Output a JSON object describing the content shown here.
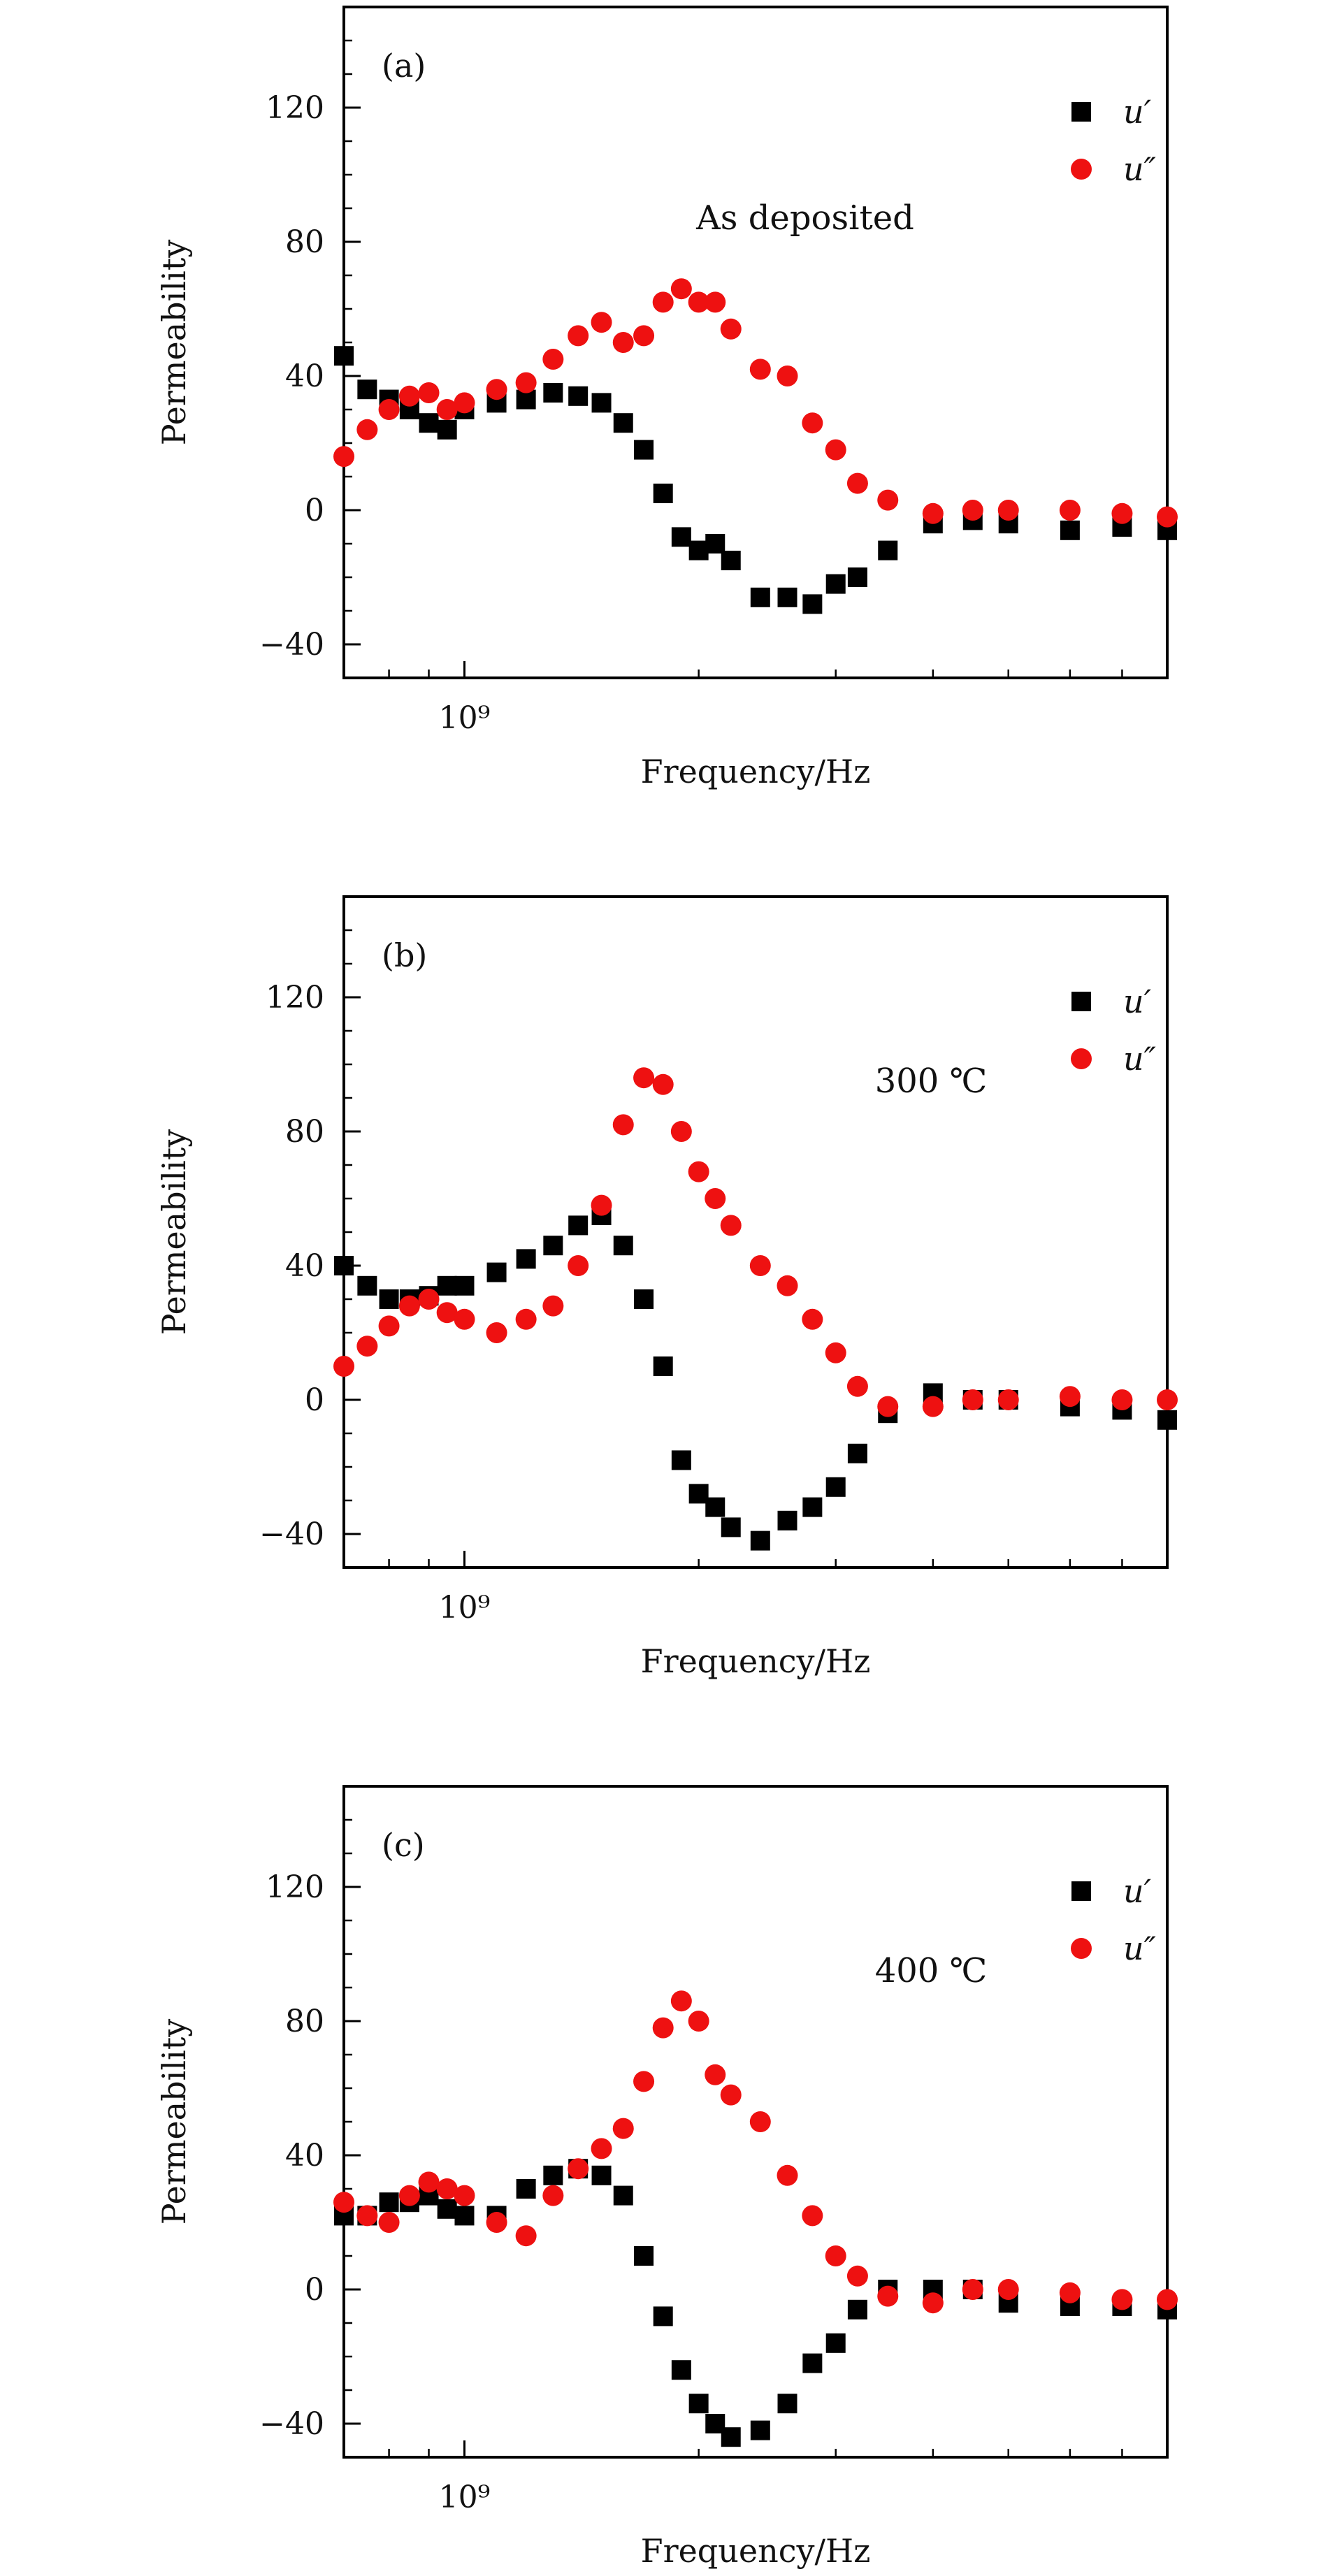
{
  "figure": {
    "panels": [
      {
        "label": "(a)",
        "annotation": "As deposited"
      },
      {
        "label": "(b)",
        "annotation": "300 ℃"
      },
      {
        "label": "(c)",
        "annotation": "400 ℃"
      }
    ]
  },
  "colors": {
    "u_prime": "#000000",
    "u_double_prime": "#ee1111"
  },
  "chart_data": [
    {
      "type": "scatter",
      "title": "",
      "xlabel": "Frequency/Hz",
      "ylabel": "Permeability",
      "x_scale": "log",
      "xlim": [
        700000000.0,
        8000000000.0
      ],
      "ylim": [
        -50,
        150
      ],
      "y_ticks": [
        -40,
        0,
        40,
        80,
        120
      ],
      "x_tick_labels": [
        "10⁹"
      ],
      "grid": false,
      "legend_position": "top-right",
      "series": [
        {
          "name": "u′",
          "marker": "square",
          "x": [
            700000000.0,
            750000000.0,
            800000000.0,
            850000000.0,
            900000000.0,
            950000000.0,
            1000000000.0,
            1100000000.0,
            1200000000.0,
            1300000000.0,
            1400000000.0,
            1500000000.0,
            1600000000.0,
            1700000000.0,
            1800000000.0,
            1900000000.0,
            2000000000.0,
            2100000000.0,
            2200000000.0,
            2400000000.0,
            2600000000.0,
            2800000000.0,
            3000000000.0,
            3200000000.0,
            3500000000.0,
            4000000000.0,
            4500000000.0,
            5000000000.0,
            6000000000.0,
            7000000000.0,
            8000000000.0
          ],
          "y": [
            46,
            36,
            33,
            30,
            26,
            24,
            30,
            32,
            33,
            35,
            34,
            32,
            26,
            18,
            5,
            -8,
            -12,
            -10,
            -15,
            -26,
            -26,
            -28,
            -22,
            -20,
            -12,
            -4,
            -3,
            -4,
            -6,
            -5,
            -6
          ]
        },
        {
          "name": "u″",
          "marker": "circle",
          "x": [
            700000000.0,
            750000000.0,
            800000000.0,
            850000000.0,
            900000000.0,
            950000000.0,
            1000000000.0,
            1100000000.0,
            1200000000.0,
            1300000000.0,
            1400000000.0,
            1500000000.0,
            1600000000.0,
            1700000000.0,
            1800000000.0,
            1900000000.0,
            2000000000.0,
            2100000000.0,
            2200000000.0,
            2400000000.0,
            2600000000.0,
            2800000000.0,
            3000000000.0,
            3200000000.0,
            3500000000.0,
            4000000000.0,
            4500000000.0,
            5000000000.0,
            6000000000.0,
            7000000000.0,
            8000000000.0
          ],
          "y": [
            16,
            24,
            30,
            34,
            35,
            30,
            32,
            36,
            38,
            45,
            52,
            56,
            50,
            52,
            62,
            66,
            62,
            62,
            54,
            42,
            40,
            26,
            18,
            8,
            3,
            -1,
            0,
            0,
            0,
            -1,
            -2
          ]
        }
      ]
    },
    {
      "type": "scatter",
      "title": "",
      "xlabel": "Frequency/Hz",
      "ylabel": "Permeability",
      "x_scale": "log",
      "xlim": [
        700000000.0,
        8000000000.0
      ],
      "ylim": [
        -50,
        150
      ],
      "y_ticks": [
        -40,
        0,
        40,
        80,
        120
      ],
      "x_tick_labels": [
        "10⁹"
      ],
      "grid": false,
      "legend_position": "top-right",
      "series": [
        {
          "name": "u′",
          "marker": "square",
          "x": [
            700000000.0,
            750000000.0,
            800000000.0,
            850000000.0,
            900000000.0,
            950000000.0,
            1000000000.0,
            1100000000.0,
            1200000000.0,
            1300000000.0,
            1400000000.0,
            1500000000.0,
            1600000000.0,
            1700000000.0,
            1800000000.0,
            1900000000.0,
            2000000000.0,
            2100000000.0,
            2200000000.0,
            2400000000.0,
            2600000000.0,
            2800000000.0,
            3000000000.0,
            3200000000.0,
            3500000000.0,
            4000000000.0,
            4500000000.0,
            5000000000.0,
            6000000000.0,
            7000000000.0,
            8000000000.0
          ],
          "y": [
            40,
            34,
            30,
            30,
            31,
            34,
            34,
            38,
            42,
            46,
            52,
            55,
            46,
            30,
            10,
            -18,
            -28,
            -32,
            -38,
            -42,
            -36,
            -32,
            -26,
            -16,
            -4,
            2,
            0,
            0,
            -2,
            -3,
            -6
          ]
        },
        {
          "name": "u″",
          "marker": "circle",
          "x": [
            700000000.0,
            750000000.0,
            800000000.0,
            850000000.0,
            900000000.0,
            950000000.0,
            1000000000.0,
            1100000000.0,
            1200000000.0,
            1300000000.0,
            1400000000.0,
            1500000000.0,
            1600000000.0,
            1700000000.0,
            1800000000.0,
            1900000000.0,
            2000000000.0,
            2100000000.0,
            2200000000.0,
            2400000000.0,
            2600000000.0,
            2800000000.0,
            3000000000.0,
            3200000000.0,
            3500000000.0,
            4000000000.0,
            4500000000.0,
            5000000000.0,
            6000000000.0,
            7000000000.0,
            8000000000.0
          ],
          "y": [
            10,
            16,
            22,
            28,
            30,
            26,
            24,
            20,
            24,
            28,
            40,
            58,
            82,
            96,
            94,
            80,
            68,
            60,
            52,
            40,
            34,
            24,
            14,
            4,
            -2,
            -2,
            0,
            0,
            1,
            0,
            0
          ]
        }
      ]
    },
    {
      "type": "scatter",
      "title": "",
      "xlabel": "Frequency/Hz",
      "ylabel": "Permeability",
      "x_scale": "log",
      "xlim": [
        700000000.0,
        8000000000.0
      ],
      "ylim": [
        -50,
        150
      ],
      "y_ticks": [
        -40,
        0,
        40,
        80,
        120
      ],
      "x_tick_labels": [
        "10⁹"
      ],
      "grid": false,
      "legend_position": "top-right",
      "series": [
        {
          "name": "u′",
          "marker": "square",
          "x": [
            700000000.0,
            750000000.0,
            800000000.0,
            850000000.0,
            900000000.0,
            950000000.0,
            1000000000.0,
            1100000000.0,
            1200000000.0,
            1300000000.0,
            1400000000.0,
            1500000000.0,
            1600000000.0,
            1700000000.0,
            1800000000.0,
            1900000000.0,
            2000000000.0,
            2100000000.0,
            2200000000.0,
            2400000000.0,
            2600000000.0,
            2800000000.0,
            3000000000.0,
            3200000000.0,
            3500000000.0,
            4000000000.0,
            4500000000.0,
            5000000000.0,
            6000000000.0,
            7000000000.0,
            8000000000.0
          ],
          "y": [
            22,
            22,
            26,
            26,
            28,
            24,
            22,
            22,
            30,
            34,
            36,
            34,
            28,
            10,
            -8,
            -24,
            -34,
            -40,
            -44,
            -42,
            -34,
            -22,
            -16,
            -6,
            0,
            0,
            0,
            -4,
            -5,
            -5,
            -6
          ]
        },
        {
          "name": "u″",
          "marker": "circle",
          "x": [
            700000000.0,
            750000000.0,
            800000000.0,
            850000000.0,
            900000000.0,
            950000000.0,
            1000000000.0,
            1100000000.0,
            1200000000.0,
            1300000000.0,
            1400000000.0,
            1500000000.0,
            1600000000.0,
            1700000000.0,
            1800000000.0,
            1900000000.0,
            2000000000.0,
            2100000000.0,
            2200000000.0,
            2400000000.0,
            2600000000.0,
            2800000000.0,
            3000000000.0,
            3200000000.0,
            3500000000.0,
            4000000000.0,
            4500000000.0,
            5000000000.0,
            6000000000.0,
            7000000000.0,
            8000000000.0
          ],
          "y": [
            26,
            22,
            20,
            28,
            32,
            30,
            28,
            20,
            16,
            28,
            36,
            42,
            48,
            62,
            78,
            86,
            80,
            64,
            58,
            50,
            34,
            22,
            10,
            4,
            -2,
            -4,
            0,
            0,
            -1,
            -3,
            -3
          ]
        }
      ]
    }
  ]
}
